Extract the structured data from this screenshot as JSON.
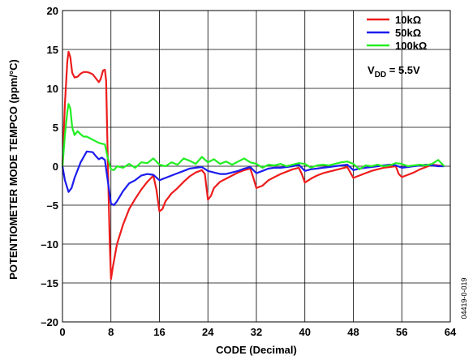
{
  "chart_data": {
    "type": "line",
    "xlabel": "CODE (Decimal)",
    "ylabel": "POTENTIOMETER MODE TEMPCO (ppm/°C)",
    "xlim": [
      0,
      64
    ],
    "ylim": [
      -20,
      20
    ],
    "x_ticks": [
      "0",
      "8",
      "16",
      "24",
      "32",
      "40",
      "48",
      "56",
      "64"
    ],
    "y_ticks": [
      "20",
      "15",
      "10",
      "5",
      "0",
      "–5",
      "–10",
      "–15",
      "–20"
    ],
    "grid": true,
    "legend_position": "top-right",
    "annotation": "V_DD = 5.5V",
    "figure_id": "04419-0-019",
    "series": [
      {
        "name": "10kΩ",
        "color": "#ee1c1c",
        "points": [
          [
            0,
            0
          ],
          [
            0.4,
            8
          ],
          [
            0.8,
            13.5
          ],
          [
            1,
            14.7
          ],
          [
            1.3,
            14
          ],
          [
            1.6,
            12
          ],
          [
            2,
            11.4
          ],
          [
            2.5,
            11.5
          ],
          [
            3,
            11.9
          ],
          [
            3.5,
            12.1
          ],
          [
            4,
            12.1
          ],
          [
            4.5,
            12
          ],
          [
            5,
            11.8
          ],
          [
            5.5,
            11.3
          ],
          [
            6,
            10.8
          ],
          [
            6.3,
            11.2
          ],
          [
            6.7,
            12.3
          ],
          [
            7,
            12.4
          ],
          [
            7.2,
            11
          ],
          [
            7.5,
            0
          ],
          [
            7.8,
            -10
          ],
          [
            8,
            -14.5
          ],
          [
            8.3,
            -13
          ],
          [
            9,
            -10
          ],
          [
            10,
            -7.5
          ],
          [
            11,
            -5.5
          ],
          [
            12,
            -4.2
          ],
          [
            13,
            -3
          ],
          [
            14,
            -2
          ],
          [
            15,
            -1.2
          ],
          [
            15.5,
            -3
          ],
          [
            16,
            -5.8
          ],
          [
            16.5,
            -5.5
          ],
          [
            17,
            -4.5
          ],
          [
            18,
            -3.5
          ],
          [
            19,
            -2.8
          ],
          [
            20,
            -2
          ],
          [
            21,
            -1.3
          ],
          [
            22,
            -0.8
          ],
          [
            23,
            -0.5
          ],
          [
            23.5,
            -1
          ],
          [
            24,
            -4.3
          ],
          [
            24.5,
            -3.8
          ],
          [
            25,
            -2.8
          ],
          [
            26,
            -2
          ],
          [
            27,
            -1.6
          ],
          [
            28,
            -1.2
          ],
          [
            29,
            -0.8
          ],
          [
            30,
            -0.5
          ],
          [
            31,
            -0.3
          ],
          [
            31.5,
            -1.5
          ],
          [
            32,
            -2.8
          ],
          [
            33,
            -2.5
          ],
          [
            34,
            -1.8
          ],
          [
            35,
            -1.4
          ],
          [
            36,
            -1
          ],
          [
            37,
            -0.7
          ],
          [
            38,
            -0.4
          ],
          [
            39,
            -0.2
          ],
          [
            39.5,
            -1
          ],
          [
            40,
            -2.1
          ],
          [
            41,
            -1.6
          ],
          [
            42,
            -1.2
          ],
          [
            43,
            -0.9
          ],
          [
            44,
            -0.7
          ],
          [
            45,
            -0.5
          ],
          [
            46,
            -0.3
          ],
          [
            47,
            -0.1
          ],
          [
            47.5,
            -0.8
          ],
          [
            48,
            -1.5
          ],
          [
            49,
            -1.2
          ],
          [
            50,
            -0.9
          ],
          [
            51,
            -0.6
          ],
          [
            52,
            -0.4
          ],
          [
            53,
            -0.2
          ],
          [
            54,
            -0.1
          ],
          [
            55,
            0
          ],
          [
            55.5,
            -1
          ],
          [
            56,
            -1.4
          ],
          [
            57,
            -1.1
          ],
          [
            58,
            -0.8
          ],
          [
            59,
            -0.4
          ],
          [
            60,
            -0.1
          ],
          [
            61,
            0.2
          ],
          [
            62,
            0.1
          ],
          [
            63,
            0
          ]
        ]
      },
      {
        "name": "50kΩ",
        "color": "#1c1cee",
        "points": [
          [
            0,
            0
          ],
          [
            0.4,
            -1.8
          ],
          [
            1,
            -3.3
          ],
          [
            1.5,
            -2.8
          ],
          [
            2,
            -1.5
          ],
          [
            3,
            0.5
          ],
          [
            4,
            1.9
          ],
          [
            5,
            1.8
          ],
          [
            5.5,
            1.3
          ],
          [
            6,
            0.9
          ],
          [
            6.5,
            1.1
          ],
          [
            7,
            0.8
          ],
          [
            7.5,
            -2
          ],
          [
            8,
            -4.8
          ],
          [
            8.5,
            -5
          ],
          [
            9,
            -4.5
          ],
          [
            10,
            -3.2
          ],
          [
            11,
            -2.2
          ],
          [
            12,
            -1.8
          ],
          [
            13,
            -1.2
          ],
          [
            14,
            -1
          ],
          [
            15,
            -1.1
          ],
          [
            16,
            -1.8
          ],
          [
            17,
            -1.5
          ],
          [
            18,
            -1.2
          ],
          [
            19,
            -0.9
          ],
          [
            20,
            -0.6
          ],
          [
            21,
            -0.3
          ],
          [
            22,
            -0.2
          ],
          [
            23,
            -0.1
          ],
          [
            24,
            -0.6
          ],
          [
            25,
            -0.8
          ],
          [
            26,
            -1
          ],
          [
            27,
            -1
          ],
          [
            28,
            -0.8
          ],
          [
            29,
            -0.6
          ],
          [
            30,
            -0.3
          ],
          [
            31,
            -0.1
          ],
          [
            32,
            -0.9
          ],
          [
            33,
            -0.6
          ],
          [
            34,
            -0.3
          ],
          [
            35,
            -0.2
          ],
          [
            36,
            -0.2
          ],
          [
            37,
            -0.1
          ],
          [
            38,
            0
          ],
          [
            39,
            0.2
          ],
          [
            40,
            -0.6
          ],
          [
            41,
            -0.4
          ],
          [
            42,
            -0.3
          ],
          [
            43,
            -0.2
          ],
          [
            44,
            -0.1
          ],
          [
            45,
            0
          ],
          [
            46,
            0.1
          ],
          [
            47,
            0.2
          ],
          [
            48,
            -0.5
          ],
          [
            49,
            -0.3
          ],
          [
            50,
            -0.2
          ],
          [
            51,
            -0.1
          ],
          [
            52,
            0
          ],
          [
            53,
            0.1
          ],
          [
            54,
            0.2
          ],
          [
            55,
            0.1
          ],
          [
            56,
            -0.2
          ],
          [
            57,
            -0.1
          ],
          [
            58,
            0
          ],
          [
            59,
            0.1
          ],
          [
            60,
            0.2
          ],
          [
            61,
            0.1
          ],
          [
            62,
            0
          ],
          [
            63,
            0
          ]
        ]
      },
      {
        "name": "100kΩ",
        "color": "#22ee22",
        "points": [
          [
            0,
            0
          ],
          [
            0.4,
            4
          ],
          [
            0.8,
            7
          ],
          [
            1,
            8
          ],
          [
            1.3,
            7.4
          ],
          [
            1.6,
            5
          ],
          [
            2,
            4
          ],
          [
            2.5,
            4.5
          ],
          [
            3,
            4.1
          ],
          [
            3.5,
            3.8
          ],
          [
            4,
            3.8
          ],
          [
            4.5,
            3.6
          ],
          [
            5,
            3.4
          ],
          [
            5.5,
            3.2
          ],
          [
            6,
            3
          ],
          [
            6.5,
            2.9
          ],
          [
            7,
            2.8
          ],
          [
            7.5,
            1
          ],
          [
            8,
            -0.4
          ],
          [
            8.5,
            -0.5
          ],
          [
            9,
            0
          ],
          [
            10,
            -0.2
          ],
          [
            11,
            0.3
          ],
          [
            12,
            -0.2
          ],
          [
            13,
            0.5
          ],
          [
            14,
            0.4
          ],
          [
            15,
            1
          ],
          [
            16,
            0.2
          ],
          [
            17,
            0
          ],
          [
            18,
            0.5
          ],
          [
            19,
            0.2
          ],
          [
            20,
            1
          ],
          [
            21,
            0.7
          ],
          [
            22,
            0.3
          ],
          [
            23,
            1.2
          ],
          [
            24,
            0.5
          ],
          [
            25,
            0.9
          ],
          [
            26,
            0.3
          ],
          [
            27,
            0.6
          ],
          [
            28,
            0.2
          ],
          [
            29,
            0.6
          ],
          [
            30,
            1
          ],
          [
            31,
            0.5
          ],
          [
            32,
            0.3
          ],
          [
            33,
            -0.2
          ],
          [
            34,
            0.2
          ],
          [
            35,
            0.1
          ],
          [
            36,
            0.3
          ],
          [
            37,
            0
          ],
          [
            38,
            0.2
          ],
          [
            39,
            0.4
          ],
          [
            40,
            0.3
          ],
          [
            41,
            -0.2
          ],
          [
            42,
            0.1
          ],
          [
            43,
            0.2
          ],
          [
            44,
            0.1
          ],
          [
            45,
            0.3
          ],
          [
            46,
            0.5
          ],
          [
            47,
            0.6
          ],
          [
            48,
            0.3
          ],
          [
            49,
            -0.4
          ],
          [
            50,
            0.1
          ],
          [
            51,
            0
          ],
          [
            52,
            0.2
          ],
          [
            53,
            0
          ],
          [
            54,
            0.1
          ],
          [
            55,
            0.4
          ],
          [
            56,
            0.3
          ],
          [
            57,
            0
          ],
          [
            58,
            0.1
          ],
          [
            59,
            0.2
          ],
          [
            60,
            0.1
          ],
          [
            61,
            0.3
          ],
          [
            62,
            0.8
          ],
          [
            63,
            0
          ]
        ]
      }
    ]
  }
}
